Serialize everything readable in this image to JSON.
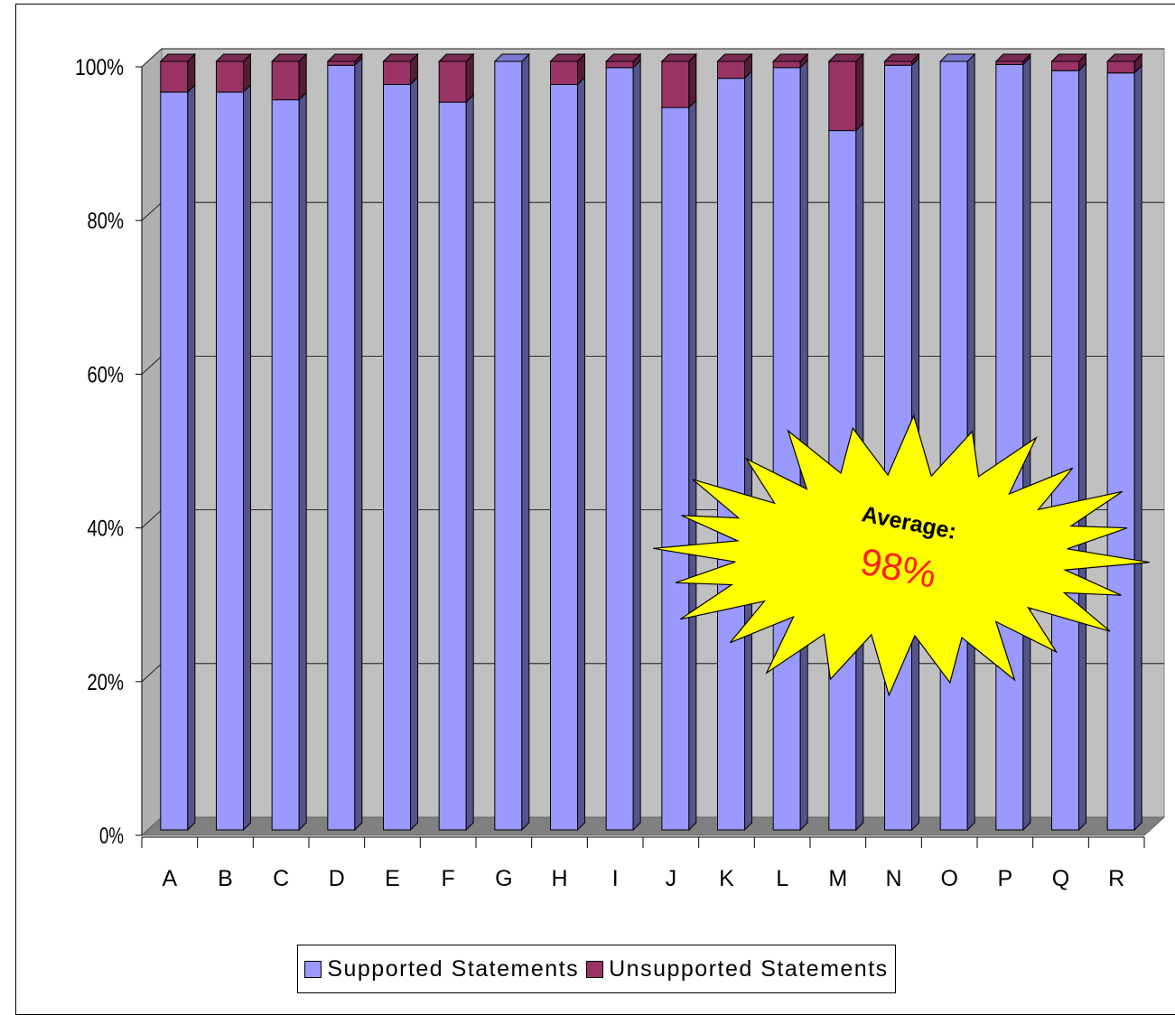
{
  "chart_data": {
    "type": "bar",
    "stacked": true,
    "style": "3d-column",
    "categories": [
      "A",
      "B",
      "C",
      "D",
      "E",
      "F",
      "G",
      "H",
      "I",
      "J",
      "K",
      "L",
      "M",
      "N",
      "O",
      "P",
      "Q",
      "R"
    ],
    "series": [
      {
        "name": "Supported Statements",
        "values": [
          96,
          96,
          95,
          99.5,
          97,
          94.7,
          100,
          97,
          99.2,
          94,
          97.8,
          99.2,
          91,
          99.5,
          100,
          99.6,
          98.8,
          98.5
        ]
      },
      {
        "name": "Unsupported Statements",
        "values": [
          4,
          4,
          5,
          0.5,
          3,
          5.3,
          0,
          3,
          0.8,
          6,
          2.2,
          0.8,
          9,
          0.5,
          0,
          0.4,
          1.2,
          1.5
        ]
      }
    ],
    "ylim": [
      0,
      100
    ],
    "yticks": [
      "0%",
      "20%",
      "40%",
      "60%",
      "80%",
      "100%"
    ],
    "grid": true,
    "legend_position": "bottom",
    "colors": {
      "supported": "#9999ff",
      "unsupported": "#993366",
      "wall": "#c0c0c0",
      "floor": "#808080"
    },
    "annotation": {
      "shape": "starburst",
      "title": "Average:",
      "value": "98%",
      "fill": "#ffff00"
    }
  }
}
